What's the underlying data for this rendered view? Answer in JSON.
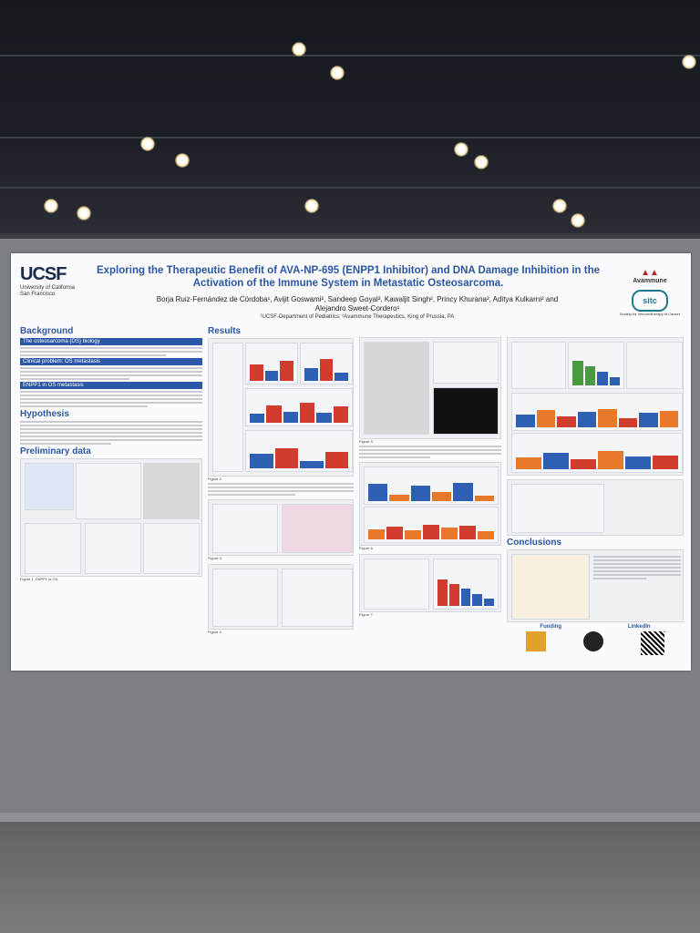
{
  "poster": {
    "title": "Exploring the Therapeutic Benefit of AVA-NP-695 (ENPP1 Inhibitor) and DNA Damage Inhibition in the Activation of the Immune System in Metastatic Osteosarcoma.",
    "authors": "Borja Ruiz-Fernández de Córdoba¹, Avijit Goswami², Sandeep Goyal², Kawaljit Singh², Princy Khurana², Aditya Kulkarni² and Alejandro Sweet-Cordero¹",
    "affiliations": "¹UCSF-Department of Pediatrics; ²Avammune Therapeutics, King of Prussia, PA",
    "logo_left": "UCSF",
    "logo_left_sub": "University of California San Francisco",
    "logo_right": "Avammune",
    "logo_right2": "sitc",
    "logo_right2_sub": "Society for Immunotherapy of Cancer",
    "sections": {
      "background": "Background",
      "os_biology": "The osteosarcoma (OS) biology",
      "clinical_problem": "Clinical problem: OS metastasis",
      "enpp1": "ENPP1 in OS metastasis",
      "hypothesis": "Hypothesis",
      "preliminary": "Preliminary data",
      "results": "Results",
      "conclusions": "Conclusions",
      "funding": "Funding",
      "linkedin": "LinkedIn"
    },
    "figure_captions": {
      "fig1": "Figure 1. ENPP1 in OS.",
      "fig2": "Figure 2.",
      "fig3": "Figure 3.",
      "fig4": "Figure 4.",
      "fig5": "Figure 5.",
      "fig6": "Figure 6.",
      "fig7": "Figure 7."
    }
  },
  "colors": {
    "accent": "#2b57a6",
    "bar_blue": "#2f5fb3",
    "bar_orange": "#e8792b",
    "bar_red": "#d23c2e",
    "bar_green": "#4a9a3f"
  }
}
